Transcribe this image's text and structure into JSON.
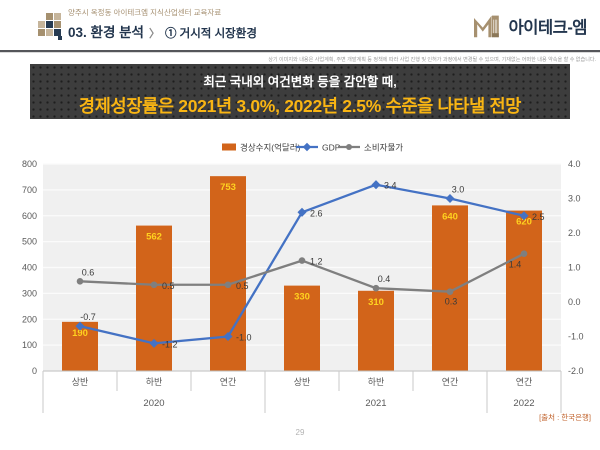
{
  "header": {
    "subtitle": "양주시 옥정동 아이테크엠 지식산업센터 교육자료",
    "title": "03. 환경 분석",
    "separator": "〉",
    "section": "① 거시적 시장환경",
    "logo_text": "아이테크-엠"
  },
  "disclaimer": "상기 이미지와 내용은 사업계획, 주변 개발계획 등 정책에 따라 사업 진행 및 인허가 과정에서 변경될 수 있으며, 기재없는 어떠한 내용 약속을 할 수 없습니다.",
  "banner": {
    "line1": "최근 국내외 여건변화 등을 감안할 때,",
    "line2": "경제성장률은 2021년 3.0%, 2022년 2.5% 수준을 나타낼 전망"
  },
  "chart_data": {
    "type": "combo-bar-line",
    "categories": [
      "상반",
      "하반",
      "연간",
      "상반",
      "하반",
      "연간",
      "연간"
    ],
    "category_groups": [
      {
        "label": "2020",
        "span": 3
      },
      {
        "label": "2021",
        "span": 3
      },
      {
        "label": "2022",
        "span": 1
      }
    ],
    "bar_series": {
      "name": "경상수지(억달러)",
      "values": [
        190,
        562,
        753,
        330,
        310,
        640,
        620
      ],
      "color": "#D2641A",
      "label_color": "#FFD21F",
      "axis": "left"
    },
    "line_series": [
      {
        "name": "GDP",
        "values": [
          -0.7,
          -1.2,
          -1.0,
          2.6,
          3.4,
          3.0,
          2.5
        ],
        "color": "#4472C4",
        "marker": "diamond",
        "axis": "right",
        "label_pos": [
          "above",
          "right",
          "right",
          "right",
          "right",
          "above",
          "right"
        ]
      },
      {
        "name": "소비자물가",
        "values": [
          0.6,
          0.5,
          0.5,
          1.2,
          0.4,
          0.3,
          1.4
        ],
        "color": "#7F7F7F",
        "marker": "circle",
        "axis": "right",
        "label_pos": [
          "above",
          "right",
          "right",
          "right",
          "above",
          "below",
          "below-left"
        ]
      }
    ],
    "left_axis": {
      "min": 0,
      "max": 800,
      "step": 100
    },
    "right_axis": {
      "min": -2.0,
      "max": 4.0,
      "step": 1.0
    },
    "grid": true,
    "legend_position": "top",
    "plot_bg": "#F0F0F0",
    "source": "[출처 : 한국은행]"
  },
  "footer": {
    "page_number": "29"
  }
}
